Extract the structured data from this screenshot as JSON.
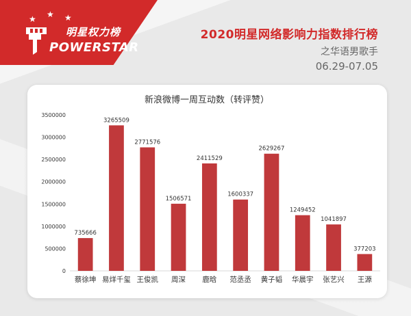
{
  "header": {
    "logo_text_cn": "明星权力榜",
    "logo_text_en": "POWERSTAR",
    "title": "2020明星网络影响力指数排行榜",
    "subtitle": "之华语男歌手",
    "date_range": "06.29-07.05"
  },
  "colors": {
    "accent": "#d22a2a",
    "bar": "#c0393b",
    "text": "#333333"
  },
  "chart_data": {
    "type": "bar",
    "title": "新浪微博一周互动数（转评赞）",
    "xlabel": "",
    "ylabel": "",
    "categories": [
      "蔡徐坤",
      "易烊千玺",
      "王俊凯",
      "周深",
      "鹿晗",
      "范丞丞",
      "黄子韬",
      "华晨宇",
      "张艺兴",
      "王源"
    ],
    "values": [
      735666,
      3265509,
      2771576,
      1506571,
      2411529,
      1600337,
      2629267,
      1249452,
      1041897,
      377203
    ],
    "data_labels": [
      "735666",
      "3265509",
      "2771576",
      "1506571",
      "2411529",
      "1600337",
      "2629267",
      "1249452",
      "1041897",
      "377203"
    ],
    "ylim": [
      0,
      3500000
    ],
    "yticks": [
      0,
      500000,
      1000000,
      1500000,
      2000000,
      2500000,
      3000000,
      3500000
    ],
    "ytick_labels": [
      "0",
      "500000",
      "1000000",
      "1500000",
      "2000000",
      "2500000",
      "3000000",
      "3500000"
    ],
    "grid": false,
    "legend": "none"
  }
}
